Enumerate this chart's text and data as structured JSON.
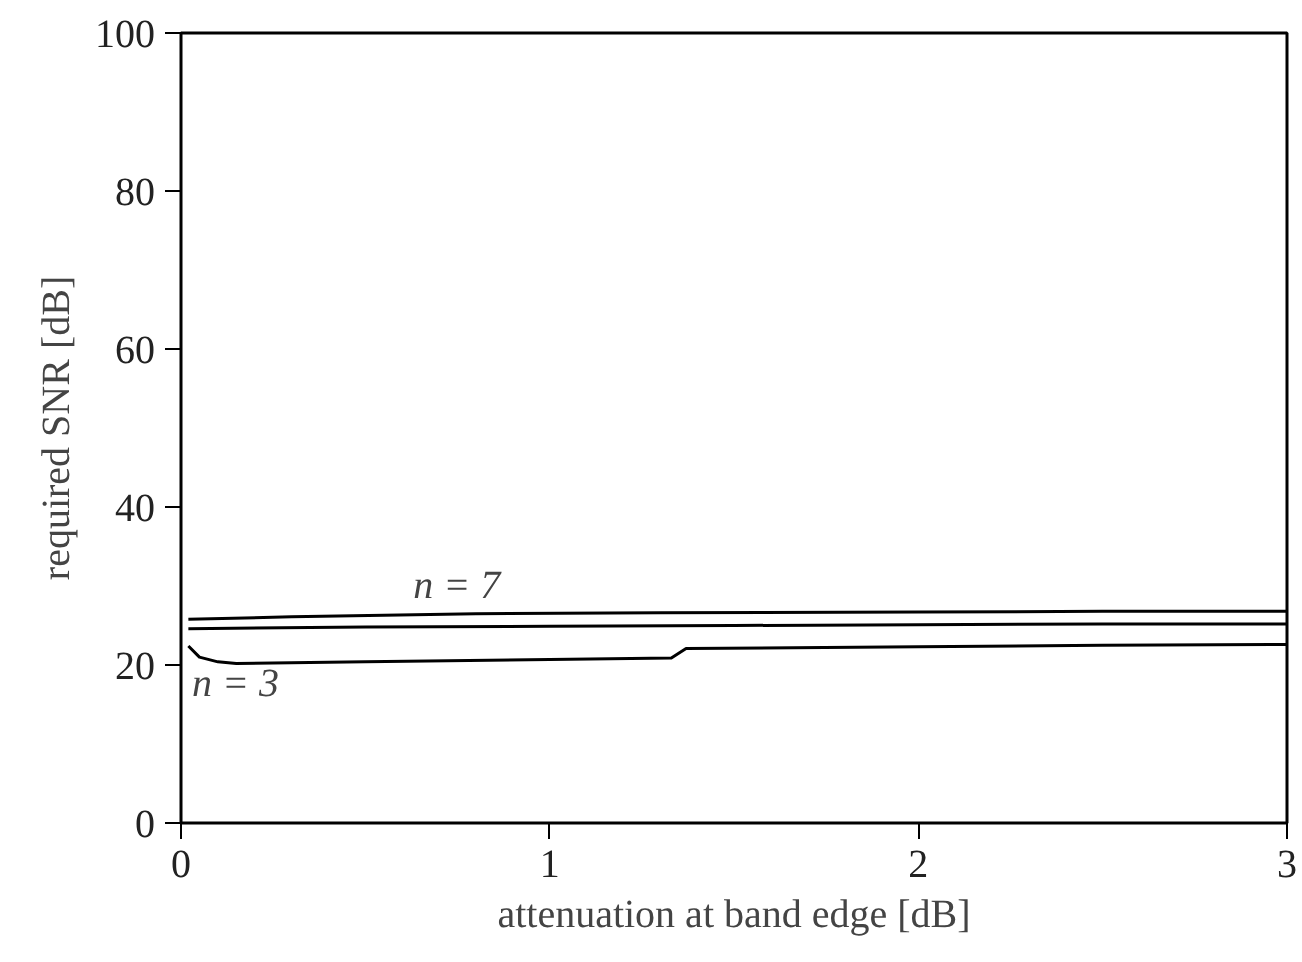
{
  "chart_data": {
    "type": "line",
    "xlabel": "attenuation at band edge [dB]",
    "ylabel": "required SNR [dB]",
    "xlim": [
      0,
      3
    ],
    "ylim": [
      0,
      100
    ],
    "xticks": [
      0,
      1,
      2,
      3
    ],
    "yticks": [
      0,
      20,
      40,
      60,
      80,
      100
    ],
    "grid": false,
    "marker": "none",
    "line_style": "solid",
    "series": [
      {
        "name": "n = 7",
        "color": "#000000",
        "x": [
          0.02,
          0.3,
          0.8,
          1.3,
          2.0,
          2.5,
          3.0
        ],
        "values": [
          25.8,
          26.1,
          26.5,
          26.6,
          26.7,
          26.8,
          26.8
        ]
      },
      {
        "color": "#000000",
        "x": [
          0.02,
          0.5,
          1.0,
          1.5,
          2.0,
          2.5,
          3.0
        ],
        "values": [
          24.6,
          24.8,
          24.9,
          25.0,
          25.1,
          25.2,
          25.2
        ]
      },
      {
        "name": "n = 3",
        "color": "#000000",
        "x": [
          0.02,
          0.05,
          0.1,
          0.15,
          0.5,
          1.0,
          1.33,
          1.37,
          2.0,
          2.5,
          3.0
        ],
        "values": [
          22.4,
          21.0,
          20.4,
          20.2,
          20.4,
          20.7,
          20.9,
          22.1,
          22.3,
          22.5,
          22.6
        ]
      }
    ]
  }
}
